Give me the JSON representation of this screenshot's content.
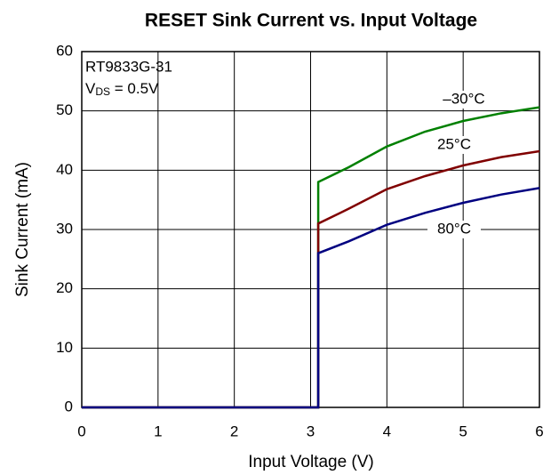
{
  "chart_data": {
    "type": "line",
    "title": "RESET Sink Current vs. Input Voltage",
    "x_label": "Input Voltage (V)",
    "y_label": "Sink Current (mA)",
    "annotation": {
      "line1": "RT9833G-31",
      "v": "V",
      "sub": "DS",
      "rest": " = 0.5V"
    },
    "x": [
      0,
      3.1,
      3.1,
      3.5,
      4,
      4.5,
      5,
      5.5,
      6
    ],
    "series": [
      {
        "name": "–30°C",
        "color": "#008000",
        "values": [
          0,
          0,
          38,
          40.5,
          44,
          46.5,
          48.3,
          49.6,
          50.6
        ]
      },
      {
        "name": "25°C",
        "color": "#800000",
        "values": [
          0,
          0,
          31,
          33.5,
          36.8,
          39,
          40.8,
          42.2,
          43.2
        ]
      },
      {
        "name": "80°C",
        "color": "#000080",
        "values": [
          0,
          0,
          26,
          28,
          30.8,
          32.8,
          34.5,
          35.9,
          37
        ]
      }
    ],
    "xlim": [
      0,
      6
    ],
    "xticks": [
      0,
      1,
      2,
      3,
      4,
      5,
      6
    ],
    "ylim": [
      0,
      60
    ],
    "yticks": [
      0,
      10,
      20,
      30,
      40,
      50,
      60
    ],
    "grid": true
  }
}
